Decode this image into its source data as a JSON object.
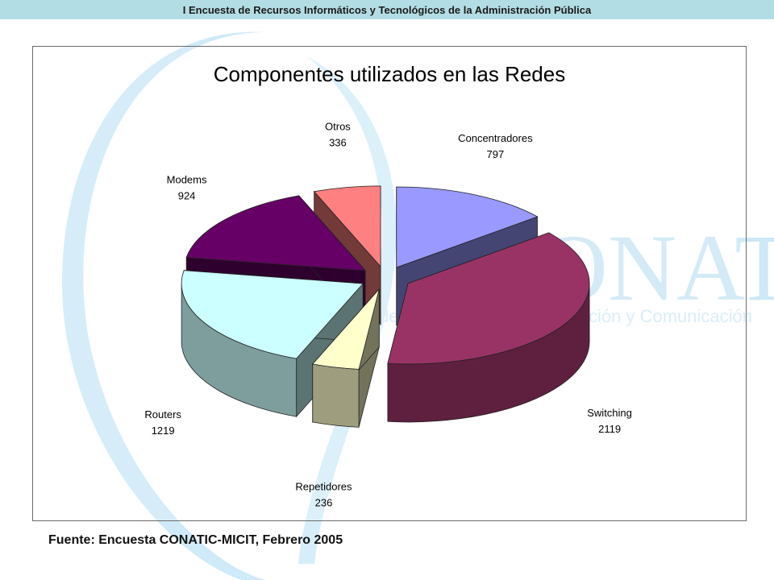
{
  "header": {
    "title": "I Encuesta de Recursos Informáticos y Tecnológicos de la Administración Pública"
  },
  "watermark": {
    "logo_text": "CONATIC",
    "tagline_fragment_left": "de",
    "tagline_fragment_right": "ción y Comunicación"
  },
  "chart_data": {
    "type": "pie",
    "title": "Componentes utilizados en las Redes",
    "slices": [
      {
        "label": "Concentradores",
        "value": 797,
        "color": "#9999ff"
      },
      {
        "label": "Switching",
        "value": 2119,
        "color": "#993366"
      },
      {
        "label": "Repetidores",
        "value": 236,
        "color": "#ffffcc"
      },
      {
        "label": "Routers",
        "value": 1219,
        "color": "#ccffff"
      },
      {
        "label": "Modems",
        "value": 924,
        "color": "#660066"
      },
      {
        "label": "Otros",
        "value": 336,
        "color": "#ff8080"
      }
    ],
    "exploded": true,
    "three_d": true
  },
  "footer": {
    "source": "Fuente: Encuesta CONATIC-MICIT, Febrero 2005"
  }
}
